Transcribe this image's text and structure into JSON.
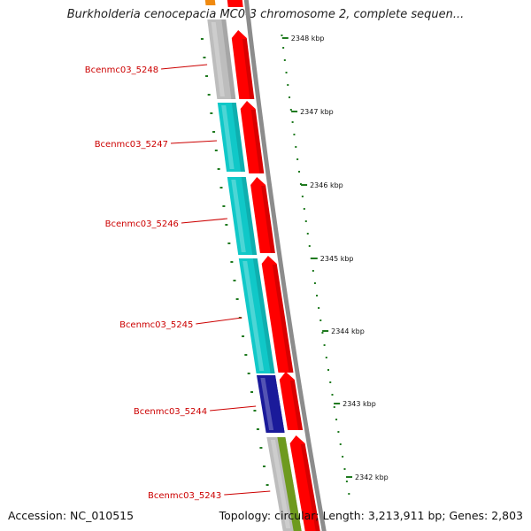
{
  "title": "Burkholderia cenocepacia MC0-3 chromosome 2, complete sequen...",
  "footer": {
    "accession": "Accession: NC_010515",
    "summary": "Topology: circular; Length: 3,213,911 bp; Genes: 2,803"
  },
  "colors": {
    "forward_strand": "#ff0000",
    "reverse_gray": "#bdbdbd",
    "reverse_cyan": "#10c8c8",
    "reverse_navy": "#1a1a9a",
    "reverse_olive": "#6e9a1e",
    "reverse_orange": "#f08a10",
    "backbone": "#8c8c8c",
    "ticks": "#1f7a1f",
    "gene_label": "#cc0000"
  },
  "genes": [
    {
      "id": "Bcenmc03_5248",
      "strand": "reverse",
      "color": "reverse_gray"
    },
    {
      "id": "Bcenmc03_5247",
      "strand": "reverse",
      "color": "reverse_cyan"
    },
    {
      "id": "Bcenmc03_5246",
      "strand": "reverse",
      "color": "reverse_cyan"
    },
    {
      "id": "Bcenmc03_5245",
      "strand": "reverse",
      "color": "reverse_cyan"
    },
    {
      "id": "Bcenmc03_5244",
      "strand": "reverse",
      "color": "reverse_navy"
    },
    {
      "id": "Bcenmc03_5243",
      "strand": "reverse",
      "color": "reverse_gray"
    }
  ],
  "kbp_ticks": [
    "2348 kbp",
    "2347 kbp",
    "2346 kbp",
    "2345 kbp",
    "2344 kbp",
    "2343 kbp",
    "2342 kbp"
  ]
}
